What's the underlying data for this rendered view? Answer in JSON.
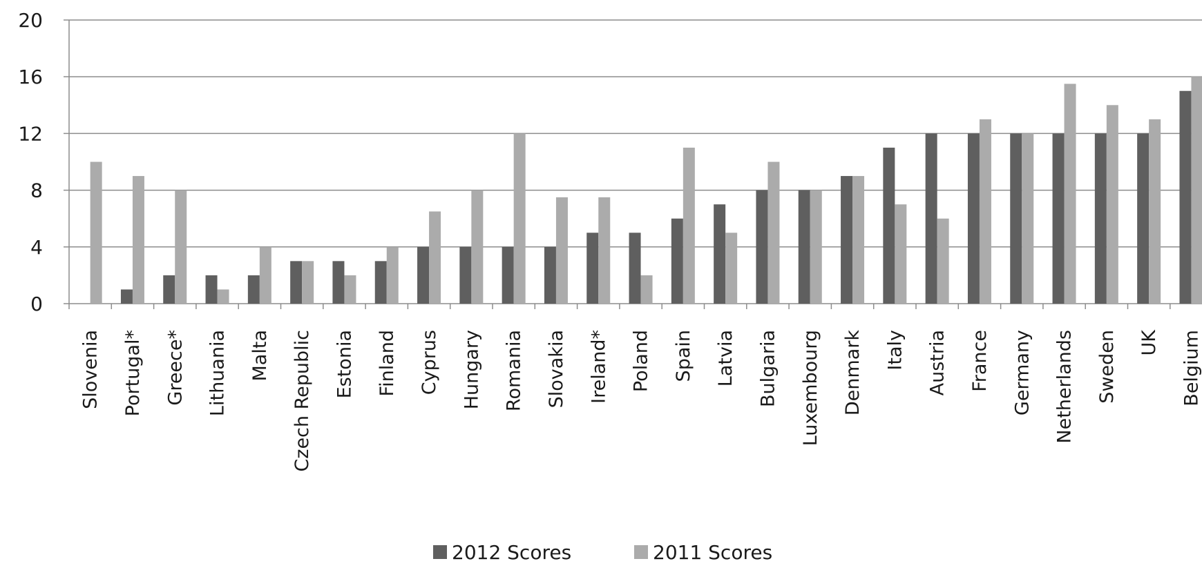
{
  "chart_data": {
    "type": "bar",
    "title": "",
    "xlabel": "",
    "ylabel": "",
    "ylim": [
      0,
      20
    ],
    "yticks": [
      0,
      4,
      8,
      12,
      16,
      20
    ],
    "grid": "horizontal",
    "legend_position": "bottom",
    "categories": [
      "Slovenia",
      "Portugal*",
      "Greece*",
      "Lithuania",
      "Malta",
      "Czech Republic",
      "Estonia",
      "Finland",
      "Cyprus",
      "Hungary",
      "Romania",
      "Slovakia",
      "Ireland*",
      "Poland",
      "Spain",
      "Latvia",
      "Bulgaria",
      "Luxembourg",
      "Denmark",
      "Italy",
      "Austria",
      "France",
      "Germany",
      "Netherlands",
      "Sweden",
      "UK",
      "Belgium"
    ],
    "series": [
      {
        "name": "2012 Scores",
        "color": "#5f5f5f",
        "values": [
          0,
          1,
          2,
          2,
          2,
          3,
          3,
          3,
          4,
          4,
          4,
          4,
          5,
          5,
          6,
          7,
          8,
          8,
          9,
          11,
          12,
          12,
          12,
          12,
          12,
          12,
          15
        ]
      },
      {
        "name": "2011 Scores",
        "color": "#ababab",
        "values": [
          10,
          9,
          8,
          1,
          4,
          3,
          2,
          4,
          6.5,
          8,
          12,
          7.5,
          7.5,
          2,
          11,
          5,
          10,
          8,
          9,
          7,
          6,
          13,
          12,
          15.5,
          14,
          13,
          16
        ]
      }
    ]
  }
}
